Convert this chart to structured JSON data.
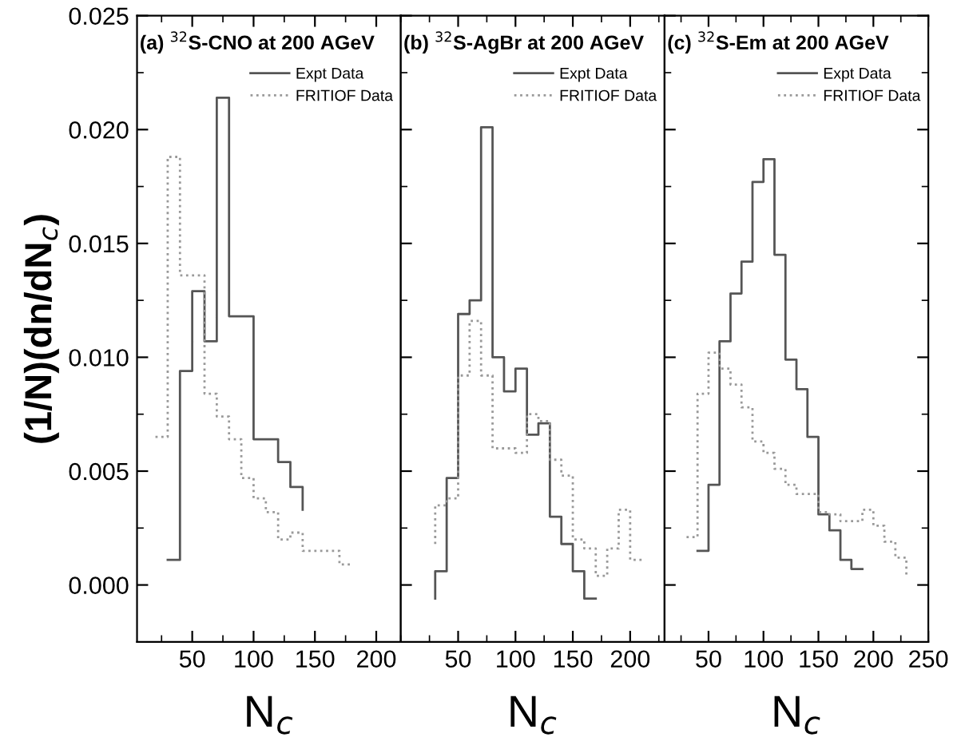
{
  "chart_data": [
    {
      "type": "step",
      "title": "(a) $^{32}$S-CNO at 200 AGeV",
      "xlabel": "N$_{c}$",
      "ylabel": "(1/N)(dn/dN$_{c}$)",
      "xlim": [
        5,
        220
      ],
      "xticks": [
        50,
        100,
        150,
        200
      ],
      "ylim": [
        -0.0025,
        0.025
      ],
      "yticks": [
        {
          "value": 0,
          "label": "0.000"
        },
        {
          "value": 0.005,
          "label": "0.005"
        },
        {
          "value": 0.01,
          "label": "0.010"
        },
        {
          "value": 0.015,
          "label": "0.015"
        },
        {
          "value": 0.02,
          "label": "0.020"
        },
        {
          "value": 0.025,
          "label": "0.025"
        }
      ],
      "grid": false,
      "legend": "top right",
      "series": [
        {
          "name": "Expt Data",
          "color": "#555555",
          "line_style": "solid",
          "x": [
            30,
            40,
            50,
            60,
            70,
            80,
            100,
            120,
            130,
            140
          ],
          "values": [
            0.0011,
            0.0094,
            0.0129,
            0.0107,
            0.0214,
            0.0118,
            0.0064,
            0.0054,
            0.0043,
            0.0033
          ]
        },
        {
          "name": "FRITIOF Data",
          "color": "#999999",
          "line_style": "dotted",
          "x": [
            20,
            30,
            40,
            60,
            70,
            80,
            90,
            100,
            110,
            120,
            130,
            140,
            170,
            180
          ],
          "values": [
            0.0065,
            0.0188,
            0.0136,
            0.0084,
            0.0074,
            0.0064,
            0.0047,
            0.0038,
            0.0032,
            0.002,
            0.0023,
            0.0015,
            0.0009,
            0.0009
          ]
        }
      ]
    },
    {
      "type": "step",
      "title": "(b) $^{32}$S-AgBr at 200 AGeV",
      "xlabel": "N$_{c}$",
      "xlim": [
        0,
        230
      ],
      "xticks": [
        50,
        100,
        150,
        200
      ],
      "ylim": [
        -0.0025,
        0.025
      ],
      "tick_labels": "x",
      "grid": false,
      "legend": "top right",
      "series": [
        {
          "name": "Expt Data",
          "color": "#555555",
          "line_style": "solid",
          "x": [
            30,
            30,
            40,
            50,
            60,
            70,
            80,
            90,
            100,
            110,
            120,
            130,
            140,
            150,
            160,
            170
          ],
          "values": [
            -0.0006,
            0.0006,
            0.0047,
            0.0119,
            0.0125,
            0.0201,
            0.01,
            0.0085,
            0.0095,
            0.0066,
            0.0071,
            0.003,
            0.0018,
            0.0006,
            -0.0006,
            -0.0006
          ]
        },
        {
          "name": "FRITIOF Data",
          "color": "#999999",
          "line_style": "dotted",
          "x": [
            30,
            30,
            40,
            50,
            60,
            70,
            80,
            100,
            110,
            120,
            130,
            140,
            150,
            160,
            170,
            180,
            190,
            200,
            210
          ],
          "values": [
            0.0018,
            0.0035,
            0.0038,
            0.0092,
            0.0116,
            0.0092,
            0.006,
            0.0058,
            0.0075,
            0.0072,
            0.0055,
            0.0048,
            0.002,
            0.0016,
            0.0004,
            0.0016,
            0.0033,
            0.0011,
            0.0011
          ]
        }
      ]
    },
    {
      "type": "step",
      "title": "(c) $^{32}$S-Em at 200 AGeV",
      "xlabel": "N$_{c}$",
      "xlim": [
        10,
        250
      ],
      "xticks": [
        50,
        100,
        150,
        200,
        250
      ],
      "ylim": [
        -0.0025,
        0.025
      ],
      "tick_labels": "x",
      "grid": false,
      "legend": "top right",
      "series": [
        {
          "name": "Expt Data",
          "color": "#555555",
          "line_style": "solid",
          "x": [
            40,
            50,
            60,
            70,
            80,
            90,
            100,
            110,
            120,
            130,
            140,
            150,
            160,
            170,
            180,
            190
          ],
          "values": [
            0.0015,
            0.0044,
            0.0107,
            0.0128,
            0.0142,
            0.0177,
            0.0187,
            0.0145,
            0.0099,
            0.0086,
            0.0065,
            0.0031,
            0.0024,
            0.0011,
            0.0007,
            0.0007
          ]
        },
        {
          "name": "FRITIOF Data",
          "color": "#999999",
          "line_style": "dotted",
          "x": [
            30,
            40,
            50,
            60,
            70,
            80,
            90,
            100,
            110,
            120,
            130,
            140,
            150,
            160,
            170,
            180,
            190,
            200,
            210,
            220,
            230
          ],
          "values": [
            0.0021,
            0.0084,
            0.0102,
            0.0095,
            0.0088,
            0.0078,
            0.0063,
            0.0058,
            0.0051,
            0.0044,
            0.004,
            0.004,
            0.0032,
            0.0031,
            0.0028,
            0.0028,
            0.0033,
            0.0026,
            0.0019,
            0.0012,
            0.0004
          ]
        }
      ]
    }
  ]
}
